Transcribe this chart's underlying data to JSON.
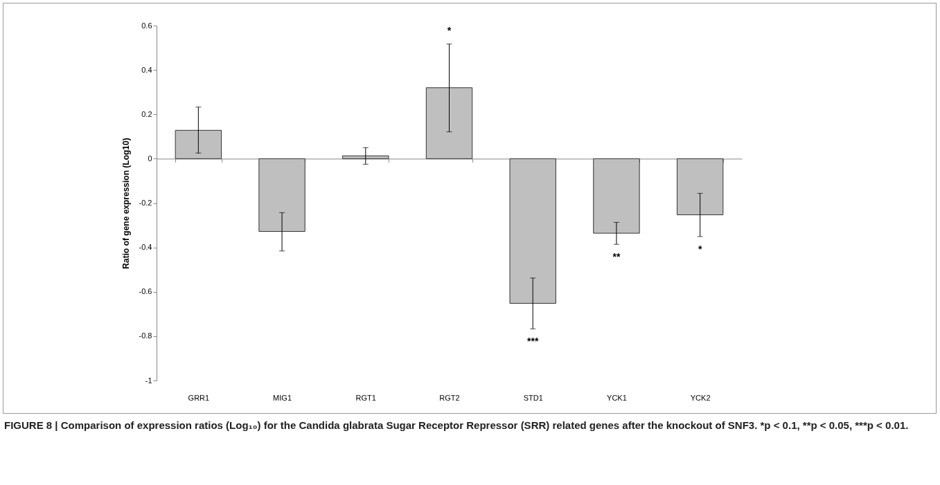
{
  "chart_data": {
    "type": "bar",
    "ylabel": "Ratio of gene expression (Log10)",
    "categories": [
      "GRR1",
      "MIG1",
      "RGT1",
      "RGT2",
      "STD1",
      "YCK1",
      "YCK2"
    ],
    "values": [
      0.128,
      -0.328,
      0.013,
      0.32,
      -0.652,
      -0.336,
      -0.253
    ],
    "errors": [
      [
        0.025,
        0.233
      ],
      [
        -0.416,
        -0.243
      ],
      [
        -0.025,
        0.05
      ],
      [
        0.121,
        0.517
      ],
      [
        -0.767,
        -0.538
      ],
      [
        -0.386,
        -0.287
      ],
      [
        -0.351,
        -0.156
      ]
    ],
    "color": "#bfbfbf",
    "ylim": [
      -1,
      0.6
    ],
    "yticks": [
      -1,
      -0.8,
      -0.6,
      -0.4,
      -0.2,
      0,
      0.2,
      0.4,
      0.6
    ],
    "annotations": [
      {
        "text": "*",
        "x": "RGT2",
        "y": 0.517
      },
      {
        "text": "***",
        "x": "STD1",
        "y": -0.767
      },
      {
        "text": "**",
        "x": "YCK1",
        "y": -0.386
      },
      {
        "text": "*",
        "x": "YCK2",
        "y": -0.351
      },
      "FIGURE 8 | Comparison of expression ratios (Log₁₀) for the Candida glabrata Sugar Receptor Repressor (SRR) related genes after the knockout of SNF3. *p < 0.1, **p < 0.05, ***p < 0.01."
    ]
  }
}
